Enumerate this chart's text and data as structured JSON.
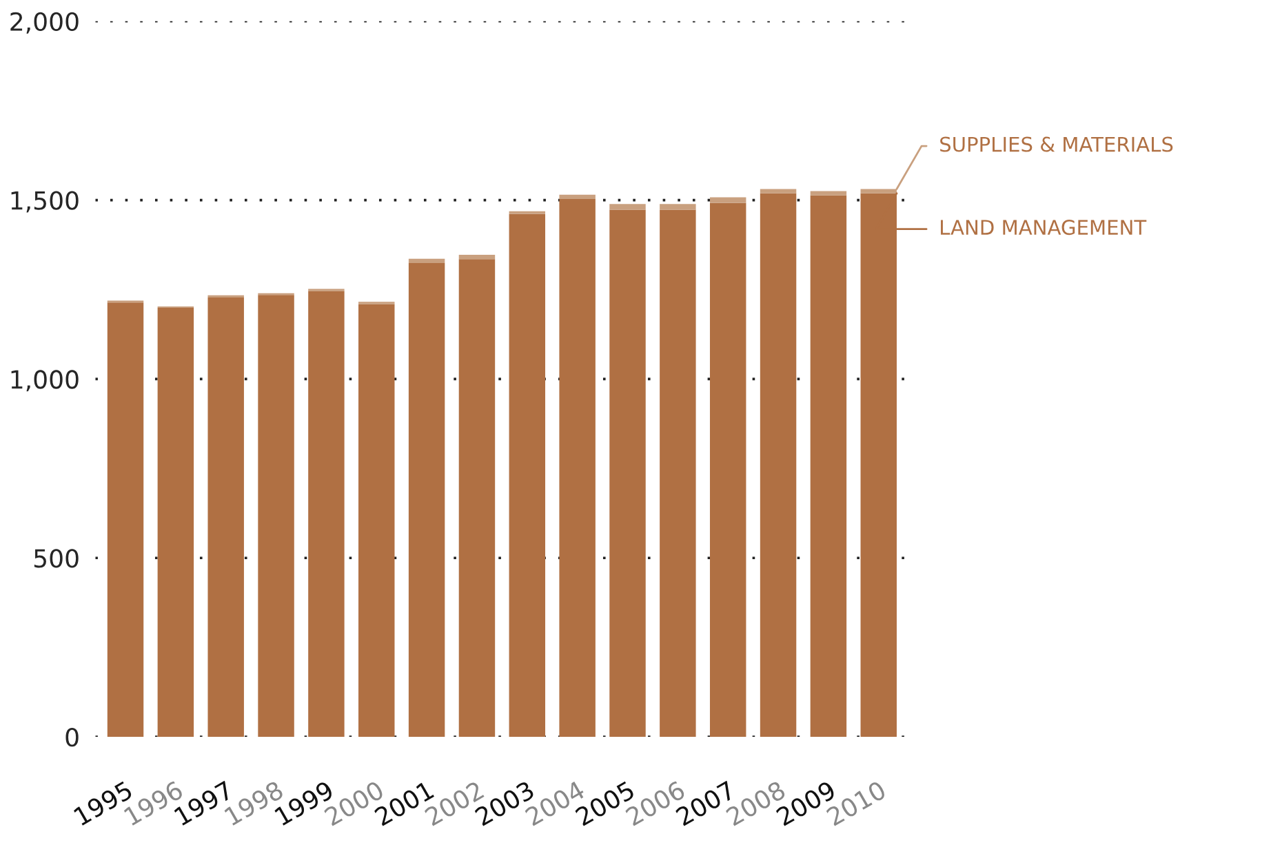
{
  "chart_data": {
    "type": "bar",
    "stacked": true,
    "categories": [
      "1995",
      "1996",
      "1997",
      "1998",
      "1999",
      "2000",
      "2001",
      "2002",
      "2003",
      "2004",
      "2005",
      "2006",
      "2007",
      "2008",
      "2009",
      "2010"
    ],
    "series": [
      {
        "name": "LAND MANAGEMENT",
        "color": "#b07043",
        "values": [
          1214,
          1199,
          1228,
          1235,
          1246,
          1209,
          1324,
          1335,
          1461,
          1503,
          1473,
          1473,
          1492,
          1519,
          1513,
          1519
        ]
      },
      {
        "name": "SUPPLIES & MATERIALS",
        "color": "#c9a07f",
        "values": [
          5,
          4,
          6,
          5,
          6,
          7,
          12,
          12,
          8,
          12,
          16,
          16,
          16,
          12,
          12,
          12
        ]
      }
    ],
    "ylim": [
      0,
      2000
    ],
    "yticks": [
      0,
      500,
      {
        "value": 1000,
        "label": "1,000"
      },
      {
        "value": 1500,
        "label": "1,500"
      },
      {
        "value": 2000,
        "label": "2,000"
      }
    ],
    "grid": "y"
  }
}
